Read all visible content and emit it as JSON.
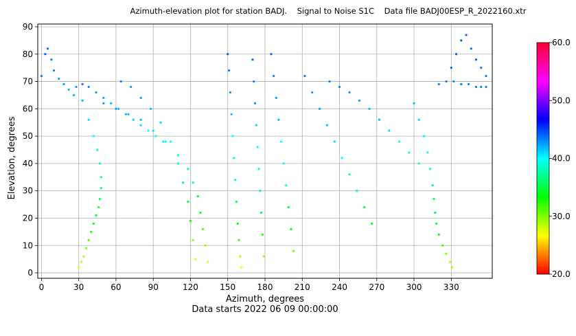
{
  "chart_data": {
    "type": "scatter",
    "title": "Azimuth-elevation plot for station BADJ.    Signal to Noise S1C    Data file BADJ00ESP_R_2022160.xtr",
    "xlabel": "Azimuth, degrees",
    "ylabel": "Elevation, degrees",
    "subtitle": "Data starts 2022 06 09 00:00:00",
    "xlim": [
      -3,
      363
    ],
    "ylim": [
      -2,
      91
    ],
    "xticks": [
      0,
      30,
      60,
      90,
      120,
      150,
      180,
      210,
      240,
      270,
      300,
      330
    ],
    "yticks": [
      0,
      10,
      20,
      30,
      40,
      50,
      60,
      70,
      80,
      90
    ],
    "grid": true,
    "colorbar": {
      "label_values": [
        "20.0",
        "30.0",
        "40.0",
        "50.0",
        "60.0"
      ],
      "vmin": 20,
      "vmax": 60,
      "colormap": "hsv"
    },
    "series": [
      {
        "x": [
          0,
          3,
          5,
          8,
          10,
          14,
          18,
          22,
          26
        ],
        "y": [
          72,
          80,
          82,
          78,
          74,
          71,
          69,
          67,
          65
        ],
        "snr": [
          48,
          49,
          49,
          48,
          48,
          47,
          47,
          46,
          46
        ]
      },
      {
        "x": [
          28,
          33,
          38,
          42,
          45,
          47,
          48,
          48,
          47,
          46,
          44,
          42,
          40,
          38,
          36,
          34,
          32,
          30
        ],
        "y": [
          68,
          63,
          56,
          50,
          45,
          40,
          35,
          31,
          27,
          24,
          21,
          18,
          15,
          12,
          9,
          6,
          4,
          2
        ],
        "snr": [
          47,
          46,
          45,
          44,
          43,
          42,
          41,
          40,
          39,
          38,
          37,
          36,
          35,
          34,
          32,
          31,
          30,
          29
        ]
      },
      {
        "x": [
          33,
          38,
          44,
          50,
          56,
          62,
          68,
          74,
          80,
          86,
          92,
          98
        ],
        "y": [
          69,
          68,
          66,
          64,
          62,
          60,
          58,
          56,
          54,
          52,
          50,
          48
        ],
        "snr": [
          48,
          48,
          47,
          47,
          46,
          46,
          46,
          45,
          45,
          44,
          44,
          44
        ]
      },
      {
        "x": [
          50,
          60,
          70,
          80,
          90,
          100,
          110,
          118,
          122,
          126,
          128,
          130,
          132,
          134
        ],
        "y": [
          62,
          60,
          58,
          56,
          52,
          48,
          43,
          38,
          33,
          28,
          22,
          16,
          10,
          4
        ],
        "snr": [
          47,
          47,
          46,
          46,
          45,
          44,
          43,
          42,
          40,
          38,
          36,
          34,
          31,
          29
        ]
      },
      {
        "x": [
          64,
          72,
          80,
          88,
          96,
          104,
          110,
          114,
          118,
          120,
          122,
          124
        ],
        "y": [
          70,
          68,
          64,
          60,
          55,
          48,
          40,
          33,
          26,
          19,
          12,
          5
        ],
        "snr": [
          48,
          47,
          47,
          46,
          45,
          44,
          42,
          40,
          38,
          35,
          32,
          29
        ]
      },
      {
        "x": [
          150,
          151,
          152,
          153,
          154,
          155,
          156,
          157,
          158,
          159,
          160,
          161
        ],
        "y": [
          80,
          74,
          66,
          58,
          50,
          42,
          34,
          26,
          18,
          12,
          6,
          2
        ],
        "snr": [
          49,
          48,
          47,
          46,
          44,
          43,
          41,
          39,
          36,
          34,
          31,
          29
        ]
      },
      {
        "x": [
          170,
          171,
          172,
          173,
          174,
          175,
          176,
          177,
          178,
          179
        ],
        "y": [
          78,
          70,
          62,
          54,
          46,
          38,
          30,
          22,
          14,
          6
        ],
        "snr": [
          49,
          48,
          47,
          45,
          44,
          42,
          40,
          38,
          35,
          31
        ]
      },
      {
        "x": [
          185,
          187,
          189,
          191,
          193,
          195,
          197,
          199,
          201,
          203
        ],
        "y": [
          80,
          72,
          64,
          56,
          48,
          40,
          32,
          24,
          16,
          8
        ],
        "snr": [
          49,
          48,
          47,
          46,
          44,
          43,
          41,
          38,
          36,
          32
        ]
      },
      {
        "x": [
          212,
          218,
          224,
          230,
          236,
          242,
          248,
          254,
          260,
          266
        ],
        "y": [
          72,
          66,
          60,
          54,
          48,
          42,
          36,
          30,
          24,
          18
        ],
        "snr": [
          48,
          47,
          47,
          46,
          45,
          44,
          42,
          40,
          38,
          36
        ]
      },
      {
        "x": [
          232,
          240,
          248,
          256,
          264,
          272,
          280,
          288,
          296,
          304
        ],
        "y": [
          70,
          68,
          66,
          63,
          60,
          56,
          52,
          48,
          44,
          40
        ],
        "snr": [
          48,
          48,
          47,
          47,
          46,
          46,
          45,
          44,
          43,
          42
        ]
      },
      {
        "x": [
          300,
          304,
          308,
          311,
          313,
          315,
          316,
          317,
          318,
          320,
          323,
          326,
          329,
          331
        ],
        "y": [
          62,
          56,
          50,
          44,
          38,
          32,
          27,
          22,
          18,
          14,
          10,
          7,
          4,
          2
        ],
        "snr": [
          46,
          45,
          44,
          43,
          42,
          40,
          39,
          38,
          37,
          36,
          34,
          32,
          30,
          29
        ]
      },
      {
        "x": [
          320,
          326,
          332,
          338,
          344,
          350,
          354,
          358
        ],
        "y": [
          69,
          70,
          70,
          69,
          69,
          68,
          68,
          68
        ],
        "snr": [
          48,
          48,
          48,
          48,
          48,
          48,
          48,
          48
        ]
      },
      {
        "x": [
          330,
          334,
          338,
          342,
          346,
          350,
          354,
          358
        ],
        "y": [
          75,
          80,
          85,
          87,
          82,
          78,
          75,
          72
        ],
        "snr": [
          49,
          49,
          49,
          49,
          49,
          49,
          48,
          48
        ]
      }
    ]
  }
}
